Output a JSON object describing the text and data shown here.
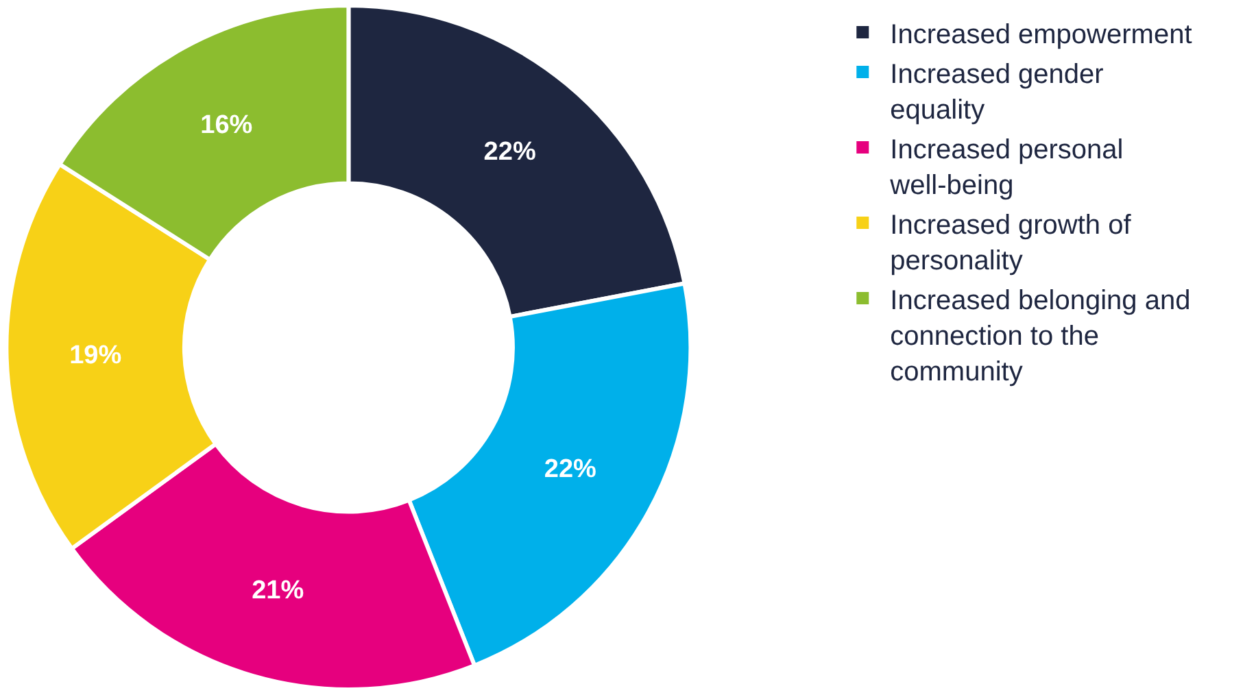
{
  "chart_data": {
    "type": "donut",
    "categories": [
      "Increased empowerment",
      "Increased gender equality",
      "Increased personal well-being",
      "Increased growth of personality",
      "Increased belonging and connection to the community"
    ],
    "values": [
      22,
      22,
      21,
      19,
      16
    ],
    "value_labels": [
      "22%",
      "22%",
      "21%",
      "19%",
      "16%"
    ],
    "colors": [
      "#1e2640",
      "#00b0ea",
      "#e6007e",
      "#f7d117",
      "#8cbd2f"
    ],
    "legend": "right"
  }
}
